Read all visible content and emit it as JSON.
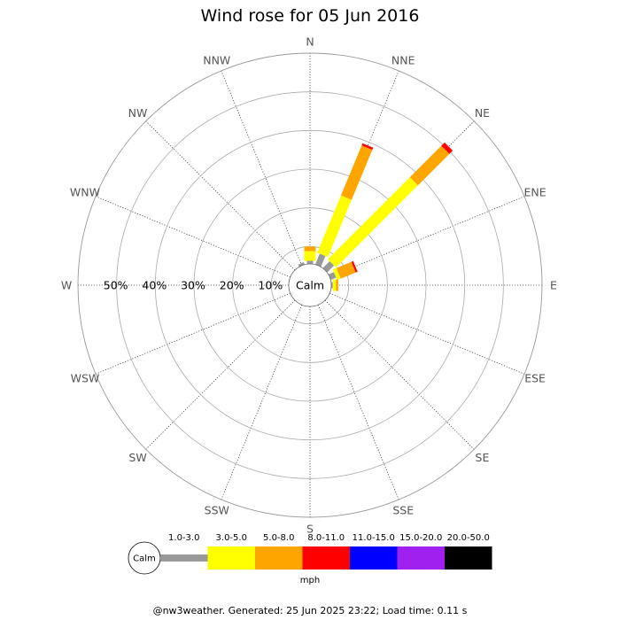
{
  "chart_data": {
    "type": "wind-rose",
    "title": "Wind rose for 05 Jun 2016",
    "directions": [
      "N",
      "NNE",
      "NE",
      "ENE",
      "E",
      "ESE",
      "SE",
      "SSE",
      "S",
      "SSW",
      "SW",
      "WSW",
      "W",
      "WNW",
      "NW",
      "NNW"
    ],
    "ring_values": [
      10,
      20,
      30,
      40,
      50
    ],
    "ring_labels": [
      "10%",
      "20%",
      "30%",
      "40%",
      "50%"
    ],
    "r_max": 60,
    "calm_label": "Calm",
    "speed_bins": [
      {
        "label": "1.0-3.0",
        "color": "#999999"
      },
      {
        "label": "3.0-5.0",
        "color": "#ffff00"
      },
      {
        "label": "5.0-8.0",
        "color": "#ffa500"
      },
      {
        "label": "8.0-11.0",
        "color": "#ff0000"
      },
      {
        "label": "11.0-15.0",
        "color": "#0000ff"
      },
      {
        "label": "15.0-20.0",
        "color": "#a020f0"
      },
      {
        "label": "20.0-50.0",
        "color": "#000000"
      }
    ],
    "unit": "mph",
    "calm_radius": 5.5,
    "series": [
      {
        "direction": "N",
        "values": [
          0.8,
          2.5,
          1.2,
          0,
          0,
          0,
          0
        ]
      },
      {
        "direction": "NNE",
        "values": [
          3.0,
          16.0,
          14.0,
          0.6,
          0,
          0,
          0
        ]
      },
      {
        "direction": "NE",
        "values": [
          2.5,
          30.0,
          11.5,
          1.2,
          0,
          0,
          0
        ]
      },
      {
        "direction": "ENE",
        "values": [
          1.5,
          1.0,
          4.2,
          0.5,
          0,
          0,
          0
        ]
      },
      {
        "direction": "E",
        "values": [
          0.4,
          0.8,
          0.6,
          0,
          0,
          0,
          0
        ]
      },
      {
        "direction": "ESE",
        "values": [
          0,
          0,
          0,
          0,
          0,
          0,
          0
        ]
      },
      {
        "direction": "SE",
        "values": [
          0,
          0,
          0,
          0,
          0,
          0,
          0
        ]
      },
      {
        "direction": "SSE",
        "values": [
          0,
          0,
          0,
          0,
          0,
          0,
          0
        ]
      },
      {
        "direction": "S",
        "values": [
          0,
          0,
          0,
          0,
          0,
          0,
          0
        ]
      },
      {
        "direction": "SSW",
        "values": [
          0,
          0,
          0,
          0,
          0,
          0,
          0
        ]
      },
      {
        "direction": "SW",
        "values": [
          0,
          0,
          0,
          0,
          0,
          0,
          0
        ]
      },
      {
        "direction": "WSW",
        "values": [
          0,
          0,
          0,
          0,
          0,
          0,
          0
        ]
      },
      {
        "direction": "W",
        "values": [
          0,
          0,
          0,
          0,
          0,
          0,
          0
        ]
      },
      {
        "direction": "WNW",
        "values": [
          0,
          0,
          0,
          0,
          0,
          0,
          0
        ]
      },
      {
        "direction": "NW",
        "values": [
          0,
          0,
          0,
          0,
          0,
          0,
          0
        ]
      },
      {
        "direction": "NNW",
        "values": [
          0.6,
          0,
          0,
          0,
          0,
          0,
          0
        ]
      }
    ]
  },
  "footer": "@nw3weather. Generated: 25 Jun 2025 23:22; Load time: 0.11 s"
}
